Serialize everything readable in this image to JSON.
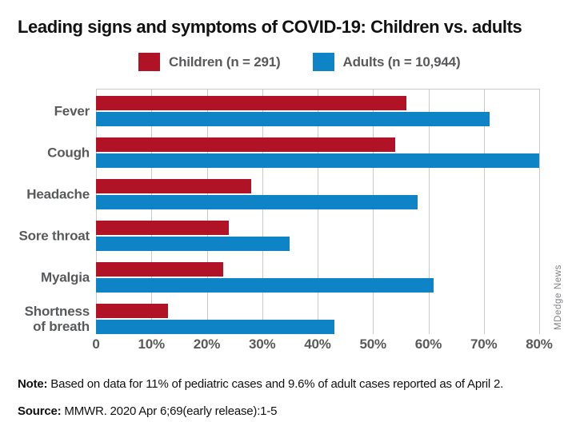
{
  "title": "Leading signs and symptoms of COVID-19: Children vs. adults",
  "legend": {
    "items": [
      {
        "label": "Children (n = 291)",
        "color": "#B01226"
      },
      {
        "label": "Adults (n = 10,944)",
        "color": "#0E83C5"
      }
    ]
  },
  "chart_data": {
    "type": "bar",
    "orientation": "horizontal",
    "title": "Leading signs and symptoms of COVID-19: Children vs. adults",
    "categories": [
      "Fever",
      "Cough",
      "Headache",
      "Sore throat",
      "Myalgia",
      "Shortness of breath"
    ],
    "series": [
      {
        "name": "Children (n = 291)",
        "color": "#B01226",
        "values": [
          56,
          54,
          28,
          24,
          23,
          13
        ]
      },
      {
        "name": "Adults (n = 10,944)",
        "color": "#0E83C5",
        "values": [
          71,
          80,
          58,
          35,
          61,
          43
        ]
      }
    ],
    "xlim": [
      0,
      80
    ],
    "x_ticks": [
      {
        "value": 0,
        "label": "0"
      },
      {
        "value": 10,
        "label": "10%"
      },
      {
        "value": 20,
        "label": "20%"
      },
      {
        "value": 30,
        "label": "30%"
      },
      {
        "value": 40,
        "label": "40%"
      },
      {
        "value": 50,
        "label": "50%"
      },
      {
        "value": 60,
        "label": "60%"
      },
      {
        "value": 70,
        "label": "70%"
      },
      {
        "value": 80,
        "label": "80%"
      }
    ],
    "grid": true,
    "gridline_color": "#C9CACB",
    "legend_position": "top",
    "label_color": "#58595B"
  },
  "footnotes": {
    "note_label": "Note:",
    "note_text": " Based on data for 11% of pediatric cases and 9.6% of adult cases reported as of April 2.",
    "source_label": "Source:",
    "source_text": " MMWR. 2020 Apr 6;69(early release):1-5"
  },
  "credit": "MDedge News"
}
